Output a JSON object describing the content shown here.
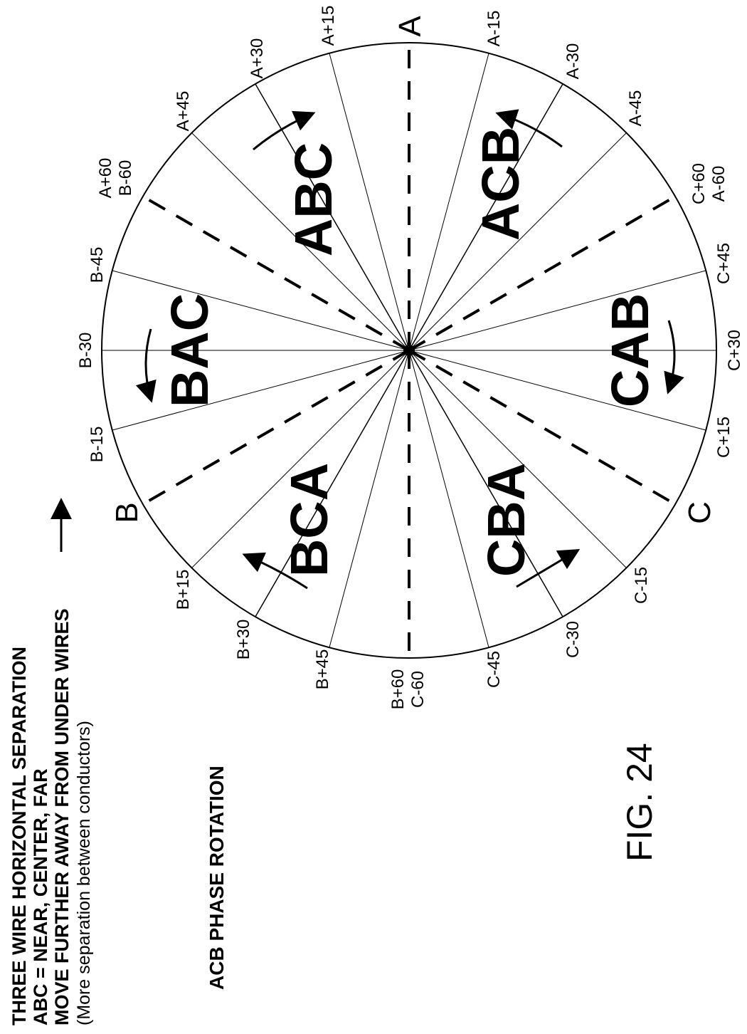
{
  "notes": {
    "line1": "THREE WIRE HORIZONTAL SEPARATION",
    "line2": "ABC = NEAR, CENTER, FAR",
    "line3": "MOVE FURTHER AWAY FROM UNDER WIRES",
    "line4": "(More separation between conductors)"
  },
  "subtitle": "ACB PHASE ROTATION",
  "figure_label": "FIG. 24",
  "main_labels": {
    "a": "A",
    "b": "B",
    "c": "C"
  },
  "ticks": [
    {
      "id": "a-15",
      "label": "A-15"
    },
    {
      "id": "a-30",
      "label": "A-30"
    },
    {
      "id": "a-45",
      "label": "A-45"
    },
    {
      "id": "c60",
      "label": "C+60",
      "label2": "A-60"
    },
    {
      "id": "c45",
      "label": "C+45"
    },
    {
      "id": "c30",
      "label": "C+30"
    },
    {
      "id": "c15",
      "label": "C+15"
    },
    {
      "id": "c-15",
      "label": "C-15"
    },
    {
      "id": "c-30",
      "label": "C-30"
    },
    {
      "id": "c-45",
      "label": "C-45"
    },
    {
      "id": "b60",
      "label": "B+60",
      "label2": "C-60"
    },
    {
      "id": "b45",
      "label": "B+45"
    },
    {
      "id": "b30",
      "label": "B+30"
    },
    {
      "id": "b15",
      "label": "B+15"
    },
    {
      "id": "b-15",
      "label": "B-15"
    },
    {
      "id": "b-30",
      "label": "B-30"
    },
    {
      "id": "b-45",
      "label": "B-45"
    },
    {
      "id": "a60",
      "label": "A+60",
      "label2": "B-60"
    },
    {
      "id": "a45",
      "label": "A+45"
    },
    {
      "id": "a30",
      "label": "A+30"
    },
    {
      "id": "a15",
      "label": "A+15"
    }
  ],
  "regions": [
    {
      "id": "abc",
      "label": "ABC"
    },
    {
      "id": "acb",
      "label": "ACB"
    },
    {
      "id": "bac",
      "label": "BAC"
    },
    {
      "id": "cab",
      "label": "CAB"
    },
    {
      "id": "bca",
      "label": "BCA"
    },
    {
      "id": "cba",
      "label": "CBA"
    }
  ]
}
